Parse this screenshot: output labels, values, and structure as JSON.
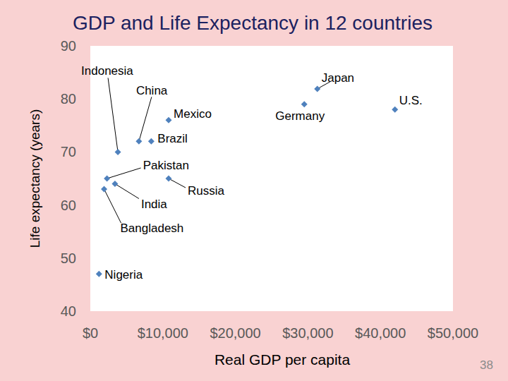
{
  "chart_data": {
    "type": "scatter",
    "title": "GDP and Life Expectancy in 12 countries",
    "x_label": "Real GDP per capita",
    "y_label": "Life expectancy (years)",
    "labels": [
      "Indonesia",
      "China",
      "Mexico",
      "Brazil",
      "Pakistan",
      "India",
      "Russia",
      "Bangladesh",
      "Nigeria",
      "Japan",
      "Germany",
      "U.S."
    ],
    "x": [
      3800,
      6700,
      10800,
      8400,
      2300,
      3400,
      10800,
      1900,
      1200,
      31300,
      29500,
      42000
    ],
    "values": [
      70,
      72,
      76,
      72,
      65,
      64,
      65,
      63,
      47,
      81.9,
      79,
      78
    ],
    "color": "#4f81bd",
    "marker": "diamond",
    "xlim": [
      0,
      50000
    ],
    "xticks": [
      {
        "value": 0,
        "label": "$0"
      },
      {
        "value": 10000,
        "label": "$10,000"
      },
      {
        "value": 20000,
        "label": "$20,000"
      },
      {
        "value": 30000,
        "label": "$30,000"
      },
      {
        "value": 40000,
        "label": "$40,000"
      },
      {
        "value": 50000,
        "label": "$50,000"
      }
    ],
    "ylim": [
      40,
      90
    ],
    "yticks": [
      40,
      50,
      60,
      70,
      80,
      90
    ],
    "grid": false,
    "page_number": "38"
  }
}
